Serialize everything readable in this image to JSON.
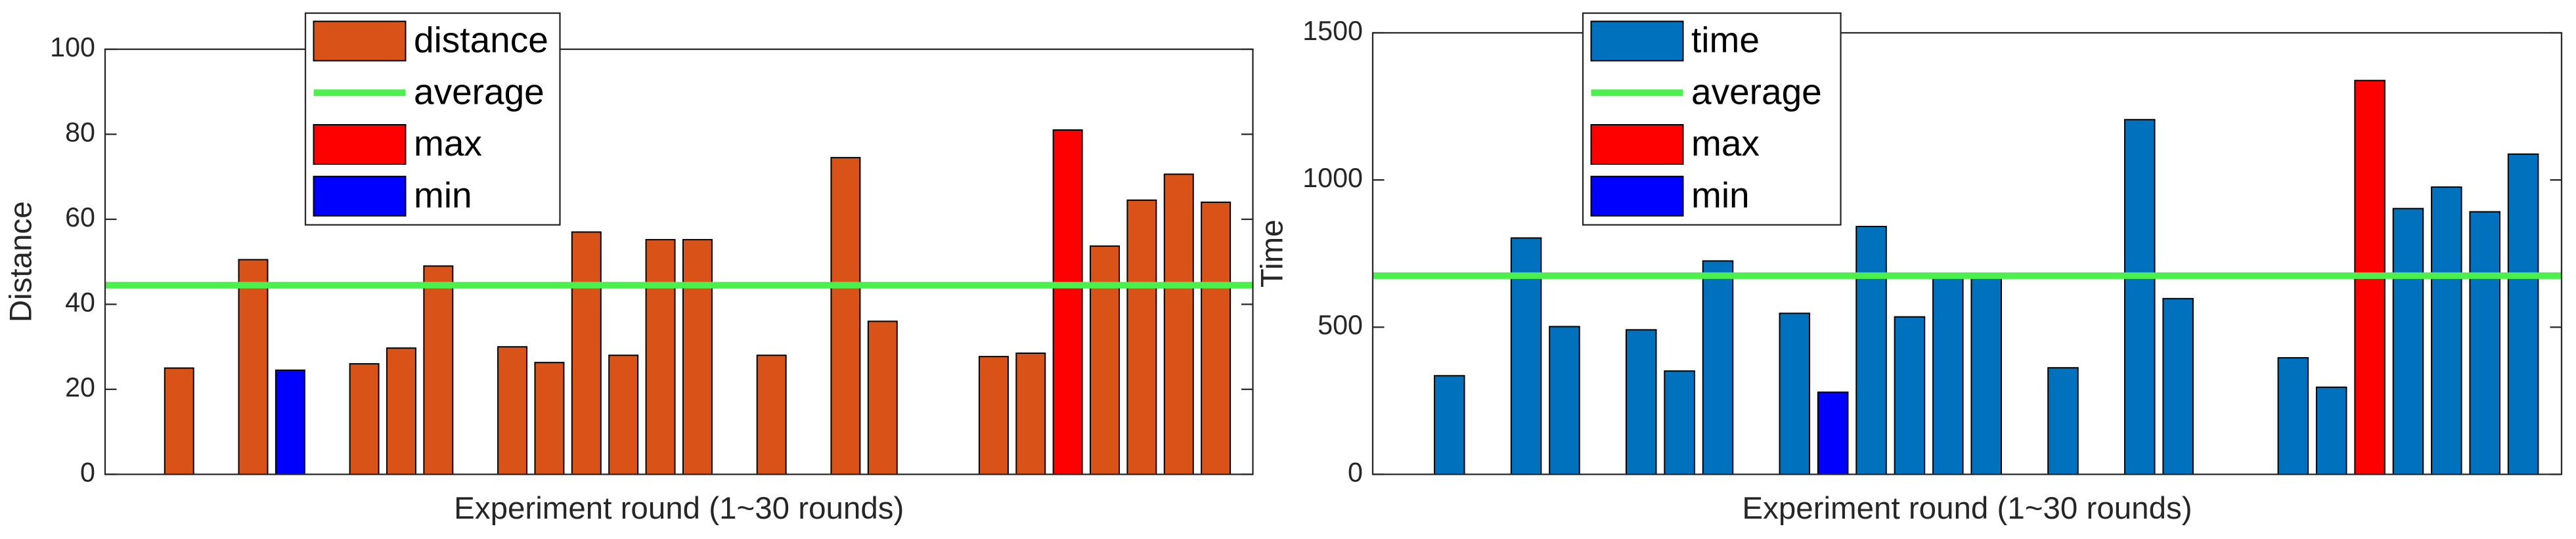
{
  "chart_data": [
    {
      "type": "bar",
      "y_label": "Distance",
      "x_label": "Experiment round (1~30 rounds)",
      "categories": [
        null,
        null,
        null,
        null,
        null,
        null,
        null,
        null,
        null,
        null,
        null,
        null,
        null,
        null,
        null,
        null,
        null,
        null,
        null,
        null,
        null,
        null,
        null,
        null,
        null,
        null,
        null,
        null,
        null,
        null
      ],
      "ylim": [
        0,
        100
      ],
      "yticks": [
        0,
        20,
        40,
        60,
        80,
        100
      ],
      "grid": false,
      "legend": "upper left",
      "series": [
        {
          "name": "distance",
          "color": "#d95319",
          "values": [
            null,
            25,
            null,
            50.5,
            null,
            null,
            26,
            29.7,
            49,
            null,
            30,
            26.3,
            57,
            28,
            55.2,
            55.2,
            null,
            28,
            null,
            74.5,
            36,
            null,
            null,
            27.7,
            28.5,
            null,
            53.7,
            64.5,
            70.6,
            64
          ]
        },
        {
          "name": "average",
          "type": "line",
          "color": "#4cf04c",
          "value": 44.5
        },
        {
          "name": "max",
          "color": "#ff0000",
          "values": [
            null,
            null,
            null,
            null,
            null,
            null,
            null,
            null,
            null,
            null,
            null,
            null,
            null,
            null,
            null,
            null,
            null,
            null,
            null,
            null,
            null,
            null,
            null,
            null,
            null,
            81,
            null,
            null,
            null,
            null
          ]
        },
        {
          "name": "min",
          "color": "#0000ff",
          "values": [
            null,
            null,
            null,
            null,
            24.5,
            null,
            null,
            null,
            null,
            null,
            null,
            null,
            null,
            null,
            null,
            null,
            null,
            null,
            null,
            null,
            null,
            null,
            null,
            null,
            null,
            null,
            null,
            null,
            null,
            null
          ]
        }
      ]
    },
    {
      "type": "bar",
      "y_label": "Time",
      "x_label": "Experiment round (1~30 rounds)",
      "categories": [
        null,
        null,
        null,
        null,
        null,
        null,
        null,
        null,
        null,
        null,
        null,
        null,
        null,
        null,
        null,
        null,
        null,
        null,
        null,
        null,
        null,
        null,
        null,
        null,
        null,
        null,
        null,
        null,
        null,
        null
      ],
      "ylim": [
        0,
        1500
      ],
      "yticks": [
        0,
        500,
        1000,
        1500
      ],
      "grid": false,
      "legend": "upper left",
      "series": [
        {
          "name": "time",
          "color": "#0072bd",
          "values": [
            null,
            335,
            null,
            803,
            502,
            null,
            491,
            351,
            725,
            null,
            547,
            null,
            842,
            535,
            669,
            669,
            null,
            362,
            null,
            1205,
            597,
            null,
            null,
            396,
            296,
            null,
            903,
            976,
            892,
            1088
          ]
        },
        {
          "name": "average",
          "type": "line",
          "color": "#4cf04c",
          "value": 675
        },
        {
          "name": "max",
          "color": "#ff0000",
          "values": [
            null,
            null,
            null,
            null,
            null,
            null,
            null,
            null,
            null,
            null,
            null,
            null,
            null,
            null,
            null,
            null,
            null,
            null,
            null,
            null,
            null,
            null,
            null,
            null,
            null,
            1338,
            null,
            null,
            null,
            null
          ]
        },
        {
          "name": "min",
          "color": "#0000ff",
          "values": [
            null,
            null,
            null,
            null,
            null,
            null,
            null,
            null,
            null,
            null,
            null,
            279,
            null,
            null,
            null,
            null,
            null,
            null,
            null,
            null,
            null,
            null,
            null,
            null,
            null,
            null,
            null,
            null,
            null,
            null
          ]
        }
      ]
    }
  ]
}
